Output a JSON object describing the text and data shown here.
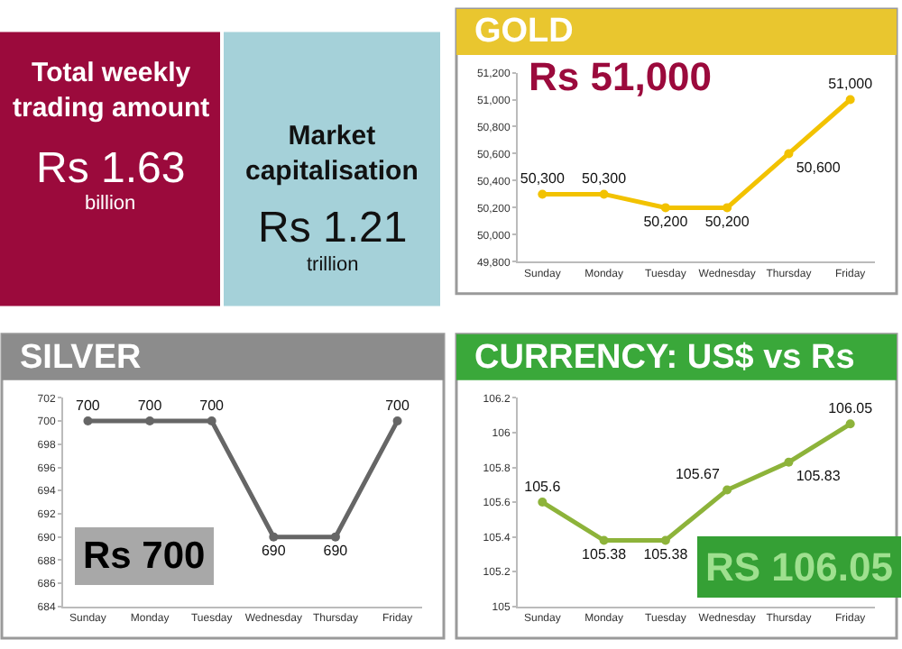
{
  "chart_data": [
    {
      "type": "other",
      "title": "Total weekly\ntrading amount",
      "annotations": [
        "Rs 1.63",
        "billion"
      ]
    },
    {
      "type": "other",
      "title": "Market\ncapitalisation",
      "annotations": [
        "Rs 1.21",
        "trillion"
      ]
    },
    {
      "type": "line",
      "title": "GOLD",
      "categories": [
        "Sunday",
        "Monday",
        "Tuesday",
        "Wednesday",
        "Thursday",
        "Friday"
      ],
      "series": [
        {
          "color": "#f2c200",
          "values": [
            50300,
            50300,
            50200,
            50200,
            50600,
            51000
          ],
          "value_labels": [
            "50,300",
            "50,300",
            "50,200",
            "50,200",
            "50,600",
            "51,000"
          ]
        }
      ],
      "ylim": [
        49800,
        51200
      ],
      "yticks": [
        {
          "value": 49800,
          "label": "49,800"
        },
        {
          "value": 50000,
          "label": "50,000"
        },
        {
          "value": 50200,
          "label": "50,200"
        },
        {
          "value": 50400,
          "label": "50,400"
        },
        {
          "value": 50600,
          "label": "50,600"
        },
        {
          "value": 50800,
          "label": "50,800"
        },
        {
          "value": 51000,
          "label": "51,000"
        },
        {
          "value": 51200,
          "label": "51,200"
        }
      ],
      "marker": "circle",
      "annotations": [
        "Rs 51,000"
      ]
    },
    {
      "type": "line",
      "title": "SILVER",
      "categories": [
        "Sunday",
        "Monday",
        "Tuesday",
        "Wednesday",
        "Thursday",
        "Friday"
      ],
      "series": [
        {
          "color": "#666666",
          "values": [
            700,
            700,
            700,
            690,
            690,
            700
          ]
        }
      ],
      "ylim": [
        684,
        702
      ],
      "yticks": [
        684,
        686,
        688,
        690,
        692,
        694,
        696,
        698,
        700,
        702
      ],
      "marker": "circle",
      "data_labels": true,
      "annotations": [
        "Rs 700"
      ]
    },
    {
      "type": "line",
      "title": "CURRENCY: US$ vs Rs",
      "categories": [
        "Sunday",
        "Monday",
        "Tuesday",
        "Wednesday",
        "Thursday",
        "Friday"
      ],
      "series": [
        {
          "color": "#8db33a",
          "values": [
            105.6,
            105.38,
            105.38,
            105.67,
            105.83,
            106.05
          ]
        }
      ],
      "ylim": [
        105,
        106.2
      ],
      "yticks": [
        105,
        105.2,
        105.4,
        105.6,
        105.8,
        106,
        106.2
      ],
      "marker": "circle",
      "data_labels": true,
      "annotations": [
        "RS 106.05"
      ]
    }
  ]
}
